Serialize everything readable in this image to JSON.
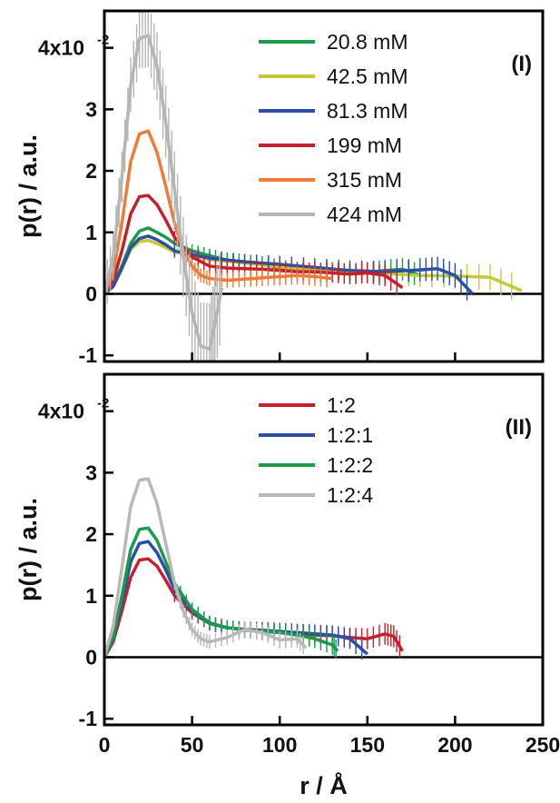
{
  "chart_data": [
    {
      "type": "line",
      "panel_label": "(I)",
      "xlabel": "r / Å",
      "ylabel": "p(r) / a.u.",
      "xlim": [
        0,
        250
      ],
      "ylim": [
        -1.1,
        4.6
      ],
      "y_scale_note": "×10^-2",
      "y_ticks": [
        "-1",
        "0",
        "1",
        "2",
        "3",
        "4x10"
      ],
      "y_tick_exponent": "-2",
      "legend_position": "top-right",
      "series": [
        {
          "name": "20.8 mM",
          "color": "#1a9a4a",
          "x": [
            0,
            5,
            10,
            15,
            20,
            25,
            30,
            35,
            40,
            50,
            60,
            70,
            80,
            90,
            100,
            110,
            120,
            130,
            140,
            150,
            160,
            170,
            180
          ],
          "values": [
            0,
            0.15,
            0.45,
            0.82,
            1.02,
            1.07,
            1.0,
            0.92,
            0.82,
            0.7,
            0.62,
            0.55,
            0.52,
            0.48,
            0.42,
            0.38,
            0.35,
            0.36,
            0.33,
            0.35,
            0.38,
            0.4,
            0.3
          ]
        },
        {
          "name": "42.5 mM",
          "color": "#c8c837",
          "x": [
            0,
            5,
            10,
            15,
            20,
            25,
            30,
            35,
            40,
            60,
            80,
            100,
            120,
            140,
            160,
            180,
            200,
            220,
            238
          ],
          "values": [
            0,
            0.12,
            0.4,
            0.72,
            0.85,
            0.87,
            0.82,
            0.75,
            0.68,
            0.56,
            0.5,
            0.44,
            0.39,
            0.35,
            0.33,
            0.3,
            0.29,
            0.27,
            0.05
          ]
        },
        {
          "name": "81.3 mM",
          "color": "#2b4fa5",
          "x": [
            0,
            5,
            10,
            15,
            20,
            25,
            30,
            35,
            40,
            60,
            80,
            100,
            120,
            140,
            160,
            180,
            190,
            200,
            210
          ],
          "values": [
            0,
            0.12,
            0.42,
            0.75,
            0.9,
            0.94,
            0.88,
            0.8,
            0.7,
            0.58,
            0.52,
            0.48,
            0.43,
            0.38,
            0.36,
            0.39,
            0.41,
            0.3,
            0.0
          ]
        },
        {
          "name": "199 mM",
          "color": "#c8202a",
          "x": [
            0,
            5,
            10,
            15,
            20,
            25,
            30,
            35,
            40,
            50,
            60,
            70,
            80,
            90,
            100,
            110,
            120,
            130,
            140,
            150,
            160,
            170
          ],
          "values": [
            0,
            0.22,
            0.7,
            1.3,
            1.58,
            1.6,
            1.45,
            1.2,
            0.92,
            0.6,
            0.45,
            0.42,
            0.41,
            0.4,
            0.38,
            0.36,
            0.36,
            0.34,
            0.32,
            0.34,
            0.3,
            0.1
          ]
        },
        {
          "name": "315 mM",
          "color": "#f07a38",
          "x": [
            0,
            5,
            10,
            15,
            20,
            25,
            30,
            35,
            40,
            45,
            50,
            55,
            60,
            70,
            80,
            90,
            100,
            110,
            120,
            130
          ],
          "values": [
            0,
            0.35,
            1.15,
            2.15,
            2.6,
            2.65,
            2.3,
            1.75,
            1.15,
            0.7,
            0.45,
            0.3,
            0.25,
            0.22,
            0.24,
            0.26,
            0.28,
            0.3,
            0.28,
            0.25
          ]
        },
        {
          "name": "424 mM",
          "color": "#b5b5b5",
          "x": [
            0,
            5,
            10,
            15,
            20,
            25,
            30,
            35,
            40,
            45,
            50,
            55,
            60,
            63,
            67
          ],
          "values": [
            0,
            0.6,
            1.9,
            3.4,
            4.15,
            4.2,
            3.7,
            2.8,
            1.7,
            0.6,
            -0.3,
            -0.85,
            -0.9,
            -0.5,
            0.1
          ]
        }
      ]
    },
    {
      "type": "line",
      "panel_label": "(II)",
      "xlabel": "r / Å",
      "ylabel": "p(r) / a.u.",
      "xlim": [
        0,
        250
      ],
      "ylim": [
        -1.1,
        4.6
      ],
      "y_ticks": [
        "-1",
        "0",
        "1",
        "2",
        "3",
        "4x10"
      ],
      "y_tick_exponent": "-2",
      "x_ticks": [
        "0",
        "50",
        "100",
        "150",
        "200",
        "250"
      ],
      "legend_position": "top-right",
      "series": [
        {
          "name": "1:2",
          "color": "#c8202a",
          "x": [
            0,
            5,
            10,
            15,
            20,
            25,
            30,
            35,
            40,
            50,
            60,
            70,
            80,
            90,
            100,
            110,
            120,
            130,
            140,
            150,
            160,
            165,
            170
          ],
          "values": [
            0,
            0.25,
            0.75,
            1.3,
            1.58,
            1.6,
            1.48,
            1.25,
            1.0,
            0.72,
            0.55,
            0.48,
            0.45,
            0.42,
            0.4,
            0.38,
            0.36,
            0.35,
            0.32,
            0.3,
            0.38,
            0.34,
            0.1
          ]
        },
        {
          "name": "1:2:1",
          "color": "#2b4fa5",
          "x": [
            0,
            5,
            10,
            15,
            20,
            25,
            30,
            35,
            40,
            50,
            60,
            70,
            80,
            90,
            100,
            110,
            120,
            130,
            140,
            150
          ],
          "values": [
            0,
            0.3,
            0.9,
            1.55,
            1.85,
            1.88,
            1.7,
            1.42,
            1.1,
            0.75,
            0.55,
            0.48,
            0.45,
            0.44,
            0.42,
            0.4,
            0.38,
            0.36,
            0.3,
            0.05
          ]
        },
        {
          "name": "1:2:2",
          "color": "#1a9a4a",
          "x": [
            0,
            5,
            10,
            15,
            20,
            25,
            30,
            35,
            40,
            50,
            60,
            70,
            80,
            90,
            100,
            110,
            120,
            130,
            133
          ],
          "values": [
            0,
            0.32,
            1.0,
            1.75,
            2.08,
            2.1,
            1.9,
            1.55,
            1.2,
            0.78,
            0.56,
            0.48,
            0.44,
            0.42,
            0.4,
            0.36,
            0.3,
            0.2,
            0.1
          ]
        },
        {
          "name": "1:2:4",
          "color": "#b8b8b8",
          "x": [
            0,
            5,
            10,
            15,
            20,
            25,
            30,
            35,
            40,
            45,
            50,
            55,
            60,
            70,
            80,
            90,
            100,
            110,
            115
          ],
          "values": [
            0,
            0.5,
            1.45,
            2.45,
            2.88,
            2.9,
            2.5,
            1.85,
            1.2,
            0.75,
            0.45,
            0.3,
            0.25,
            0.32,
            0.45,
            0.4,
            0.28,
            0.3,
            0.15
          ]
        }
      ]
    }
  ]
}
